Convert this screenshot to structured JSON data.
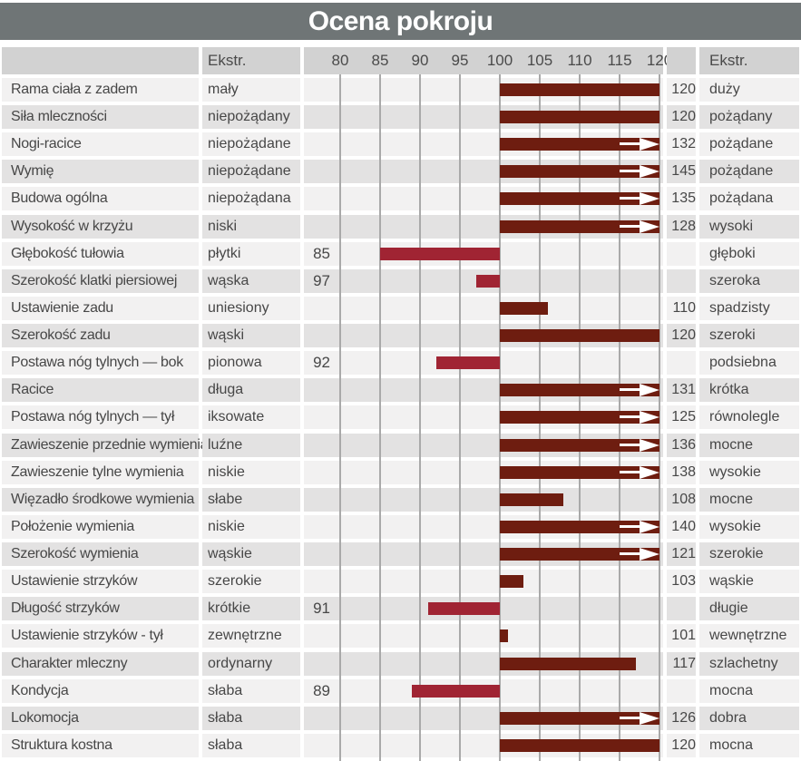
{
  "title": "Ocena pokroju",
  "header": {
    "left_extreme_label": "Ekstr.",
    "right_extreme_label": "Ekstr."
  },
  "axis": {
    "min": 80,
    "max": 120,
    "baseline": 100,
    "ticks": [
      80,
      85,
      90,
      95,
      100,
      105,
      110,
      115,
      120
    ]
  },
  "colors": {
    "title_bg": "#6f7576",
    "title_text": "#ffffff",
    "header_bg": "#d2d2d2",
    "row_odd": "#f2f1f1",
    "row_even": "#e3e2e2",
    "gridline": "#a9a9a9",
    "bar_high": "#6e1d10",
    "bar_low": "#a02433",
    "text": "#474747"
  },
  "chart_data": {
    "type": "bar",
    "orientation": "horizontal-diverging",
    "baseline": 100,
    "axis_range": [
      80,
      120
    ],
    "over_range_marker": "white-right-arrow",
    "rows": [
      {
        "trait": "Rama ciała z zadem",
        "extreme_low": "mały",
        "extreme_high": "duży",
        "value": 120
      },
      {
        "trait": "Siła mleczności",
        "extreme_low": "niepożądany",
        "extreme_high": "pożądany",
        "value": 120
      },
      {
        "trait": "Nogi-racice",
        "extreme_low": "niepożądane",
        "extreme_high": "pożądane",
        "value": 132
      },
      {
        "trait": "Wymię",
        "extreme_low": "niepożądane",
        "extreme_high": "pożądane",
        "value": 145
      },
      {
        "trait": "Budowa ogólna",
        "extreme_low": "niepożądana",
        "extreme_high": "pożądana",
        "value": 135
      },
      {
        "trait": "Wysokość w krzyżu",
        "extreme_low": "niski",
        "extreme_high": "wysoki",
        "value": 128
      },
      {
        "trait": "Głębokość tułowia",
        "extreme_low": "płytki",
        "extreme_high": "głęboki",
        "value": 85
      },
      {
        "trait": "Szerokość klatki piersiowej",
        "extreme_low": "wąska",
        "extreme_high": "szeroka",
        "value": 97
      },
      {
        "trait": "Ustawienie zadu",
        "extreme_low": "uniesiony",
        "extreme_high": "spadzisty",
        "value": 110,
        "bar_end": 106
      },
      {
        "trait": "Szerokość zadu",
        "extreme_low": "wąski",
        "extreme_high": "szeroki",
        "value": 120
      },
      {
        "trait": "Postawa nóg tylnych —  bok",
        "extreme_low": "pionowa",
        "extreme_high": "podsiebna",
        "value": 92
      },
      {
        "trait": "Racice",
        "extreme_low": "długa",
        "extreme_high": "krótka",
        "value": 131
      },
      {
        "trait": "Postawa nóg tylnych —  tył",
        "extreme_low": "iksowate",
        "extreme_high": "równolegle",
        "value": 125
      },
      {
        "trait": "Zawieszenie przednie wymienia",
        "extreme_low": "luźne",
        "extreme_high": "mocne",
        "value": 136
      },
      {
        "trait": "Zawieszenie tylne wymienia",
        "extreme_low": "niskie",
        "extreme_high": "wysokie",
        "value": 138
      },
      {
        "trait": "Więzadło środkowe wymienia",
        "extreme_low": "słabe",
        "extreme_high": "mocne",
        "value": 108
      },
      {
        "trait": "Położenie wymienia",
        "extreme_low": "niskie",
        "extreme_high": "wysokie",
        "value": 140
      },
      {
        "trait": "Szerokość wymienia",
        "extreme_low": "wąskie",
        "extreme_high": "szerokie",
        "value": 121
      },
      {
        "trait": "Ustawienie strzyków",
        "extreme_low": "szerokie",
        "extreme_high": "wąskie",
        "value": 103
      },
      {
        "trait": "Długość strzyków",
        "extreme_low": "krótkie",
        "extreme_high": "długie",
        "value": 91
      },
      {
        "trait": "Ustawienie strzyków - tył",
        "extreme_low": "zewnętrzne",
        "extreme_high": "wewnętrzne",
        "value": 101
      },
      {
        "trait": "Charakter mleczny",
        "extreme_low": "ordynarny",
        "extreme_high": "szlachetny",
        "value": 117
      },
      {
        "trait": "Kondycja",
        "extreme_low": "słaba",
        "extreme_high": "mocna",
        "value": 89
      },
      {
        "trait": "Lokomocja",
        "extreme_low": "słaba",
        "extreme_high": "dobra",
        "value": 126
      },
      {
        "trait": "Struktura kostna",
        "extreme_low": "słaba",
        "extreme_high": "mocna",
        "value": 120
      }
    ]
  }
}
